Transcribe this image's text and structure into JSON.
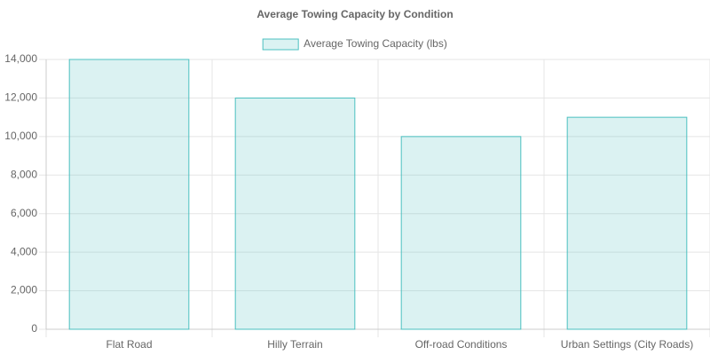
{
  "chart_data": {
    "type": "bar",
    "title": "Average Towing Capacity by Condition",
    "categories": [
      "Flat Road",
      "Hilly Terrain",
      "Off-road Conditions",
      "Urban Settings (City Roads)"
    ],
    "series": [
      {
        "name": "Average Towing Capacity (lbs)",
        "color": "#4bc0c0",
        "values": [
          14000,
          12000,
          10000,
          11000
        ]
      }
    ],
    "ylim": [
      0,
      14000
    ],
    "yticks": [
      0,
      {
        "value": 2000,
        "label": "2,000"
      },
      {
        "value": 4000,
        "label": "4,000"
      },
      {
        "value": 6000,
        "label": "6,000"
      },
      {
        "value": 8000,
        "label": "8,000"
      },
      {
        "value": 10000,
        "label": "10,000"
      },
      {
        "value": 12000,
        "label": "12,000"
      },
      {
        "value": 14000,
        "label": "14,000"
      }
    ],
    "grid": true,
    "legend": "top"
  }
}
